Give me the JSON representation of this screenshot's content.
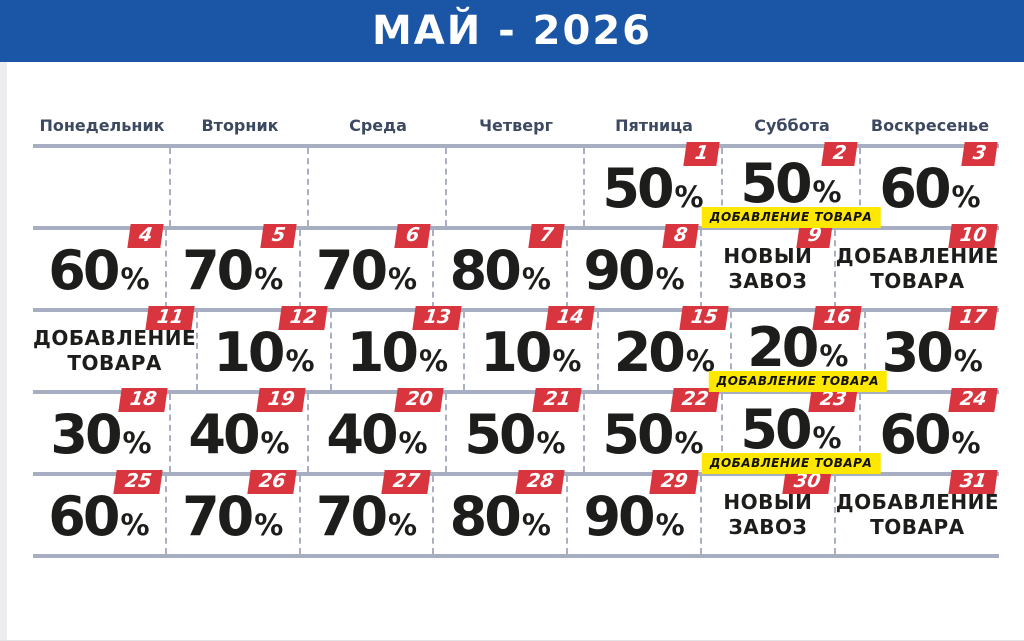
{
  "header": {
    "title": "МАЙ - 2026"
  },
  "colors": {
    "banner_blue": "#1a55a6",
    "badge_red": "#d9353e",
    "tag_yellow": "#ffe800",
    "weekday_navy": "#3d4960",
    "grid_line_gray": "#a8aec2",
    "value_black": "#1d1d1b"
  },
  "weekdays": [
    "Понедельник",
    "Вторник",
    "Среда",
    "Четверг",
    "Пятница",
    "Суббота",
    "Воскресенье"
  ],
  "weeks": [
    [
      {
        "type": "empty"
      },
      {
        "type": "empty"
      },
      {
        "type": "empty"
      },
      {
        "type": "empty"
      },
      {
        "type": "percent",
        "day": "1",
        "value": "50",
        "suffix": "%"
      },
      {
        "type": "percent",
        "day": "2",
        "value": "50",
        "suffix": "%",
        "tag": "ДОБАВЛЕНИЕ ТОВАРА"
      },
      {
        "type": "percent",
        "day": "3",
        "value": "60",
        "suffix": "%"
      }
    ],
    [
      {
        "type": "percent",
        "day": "4",
        "value": "60",
        "suffix": "%"
      },
      {
        "type": "percent",
        "day": "5",
        "value": "70",
        "suffix": "%"
      },
      {
        "type": "percent",
        "day": "6",
        "value": "70",
        "suffix": "%"
      },
      {
        "type": "percent",
        "day": "7",
        "value": "80",
        "suffix": "%"
      },
      {
        "type": "percent",
        "day": "8",
        "value": "90",
        "suffix": "%"
      },
      {
        "type": "text",
        "day": "9",
        "lines": [
          "НОВЫЙ",
          "ЗАВОЗ"
        ]
      },
      {
        "type": "text",
        "day": "10",
        "lines": [
          "ДОБАВЛЕНИЕ",
          "ТОВАРА"
        ]
      }
    ],
    [
      {
        "type": "text",
        "day": "11",
        "lines": [
          "ДОБАВЛЕНИЕ",
          "ТОВАРА"
        ]
      },
      {
        "type": "percent",
        "day": "12",
        "value": "10",
        "suffix": "%"
      },
      {
        "type": "percent",
        "day": "13",
        "value": "10",
        "suffix": "%"
      },
      {
        "type": "percent",
        "day": "14",
        "value": "10",
        "suffix": "%"
      },
      {
        "type": "percent",
        "day": "15",
        "value": "20",
        "suffix": "%"
      },
      {
        "type": "percent",
        "day": "16",
        "value": "20",
        "suffix": "%",
        "tag": "ДОБАВЛЕНИЕ ТОВАРА"
      },
      {
        "type": "percent",
        "day": "17",
        "value": "30",
        "suffix": "%"
      }
    ],
    [
      {
        "type": "percent",
        "day": "18",
        "value": "30",
        "suffix": "%"
      },
      {
        "type": "percent",
        "day": "19",
        "value": "40",
        "suffix": "%"
      },
      {
        "type": "percent",
        "day": "20",
        "value": "40",
        "suffix": "%"
      },
      {
        "type": "percent",
        "day": "21",
        "value": "50",
        "suffix": "%"
      },
      {
        "type": "percent",
        "day": "22",
        "value": "50",
        "suffix": "%"
      },
      {
        "type": "percent",
        "day": "23",
        "value": "50",
        "suffix": "%",
        "tag": "ДОБАВЛЕНИЕ ТОВАРА"
      },
      {
        "type": "percent",
        "day": "24",
        "value": "60",
        "suffix": "%"
      }
    ],
    [
      {
        "type": "percent",
        "day": "25",
        "value": "60",
        "suffix": "%"
      },
      {
        "type": "percent",
        "day": "26",
        "value": "70",
        "suffix": "%"
      },
      {
        "type": "percent",
        "day": "27",
        "value": "70",
        "suffix": "%"
      },
      {
        "type": "percent",
        "day": "28",
        "value": "80",
        "suffix": "%"
      },
      {
        "type": "percent",
        "day": "29",
        "value": "90",
        "suffix": "%"
      },
      {
        "type": "text",
        "day": "30",
        "lines": [
          "НОВЫЙ",
          "ЗАВОЗ"
        ]
      },
      {
        "type": "text",
        "day": "31",
        "lines": [
          "ДОБАВЛЕНИЕ",
          "ТОВАРА"
        ]
      }
    ]
  ]
}
